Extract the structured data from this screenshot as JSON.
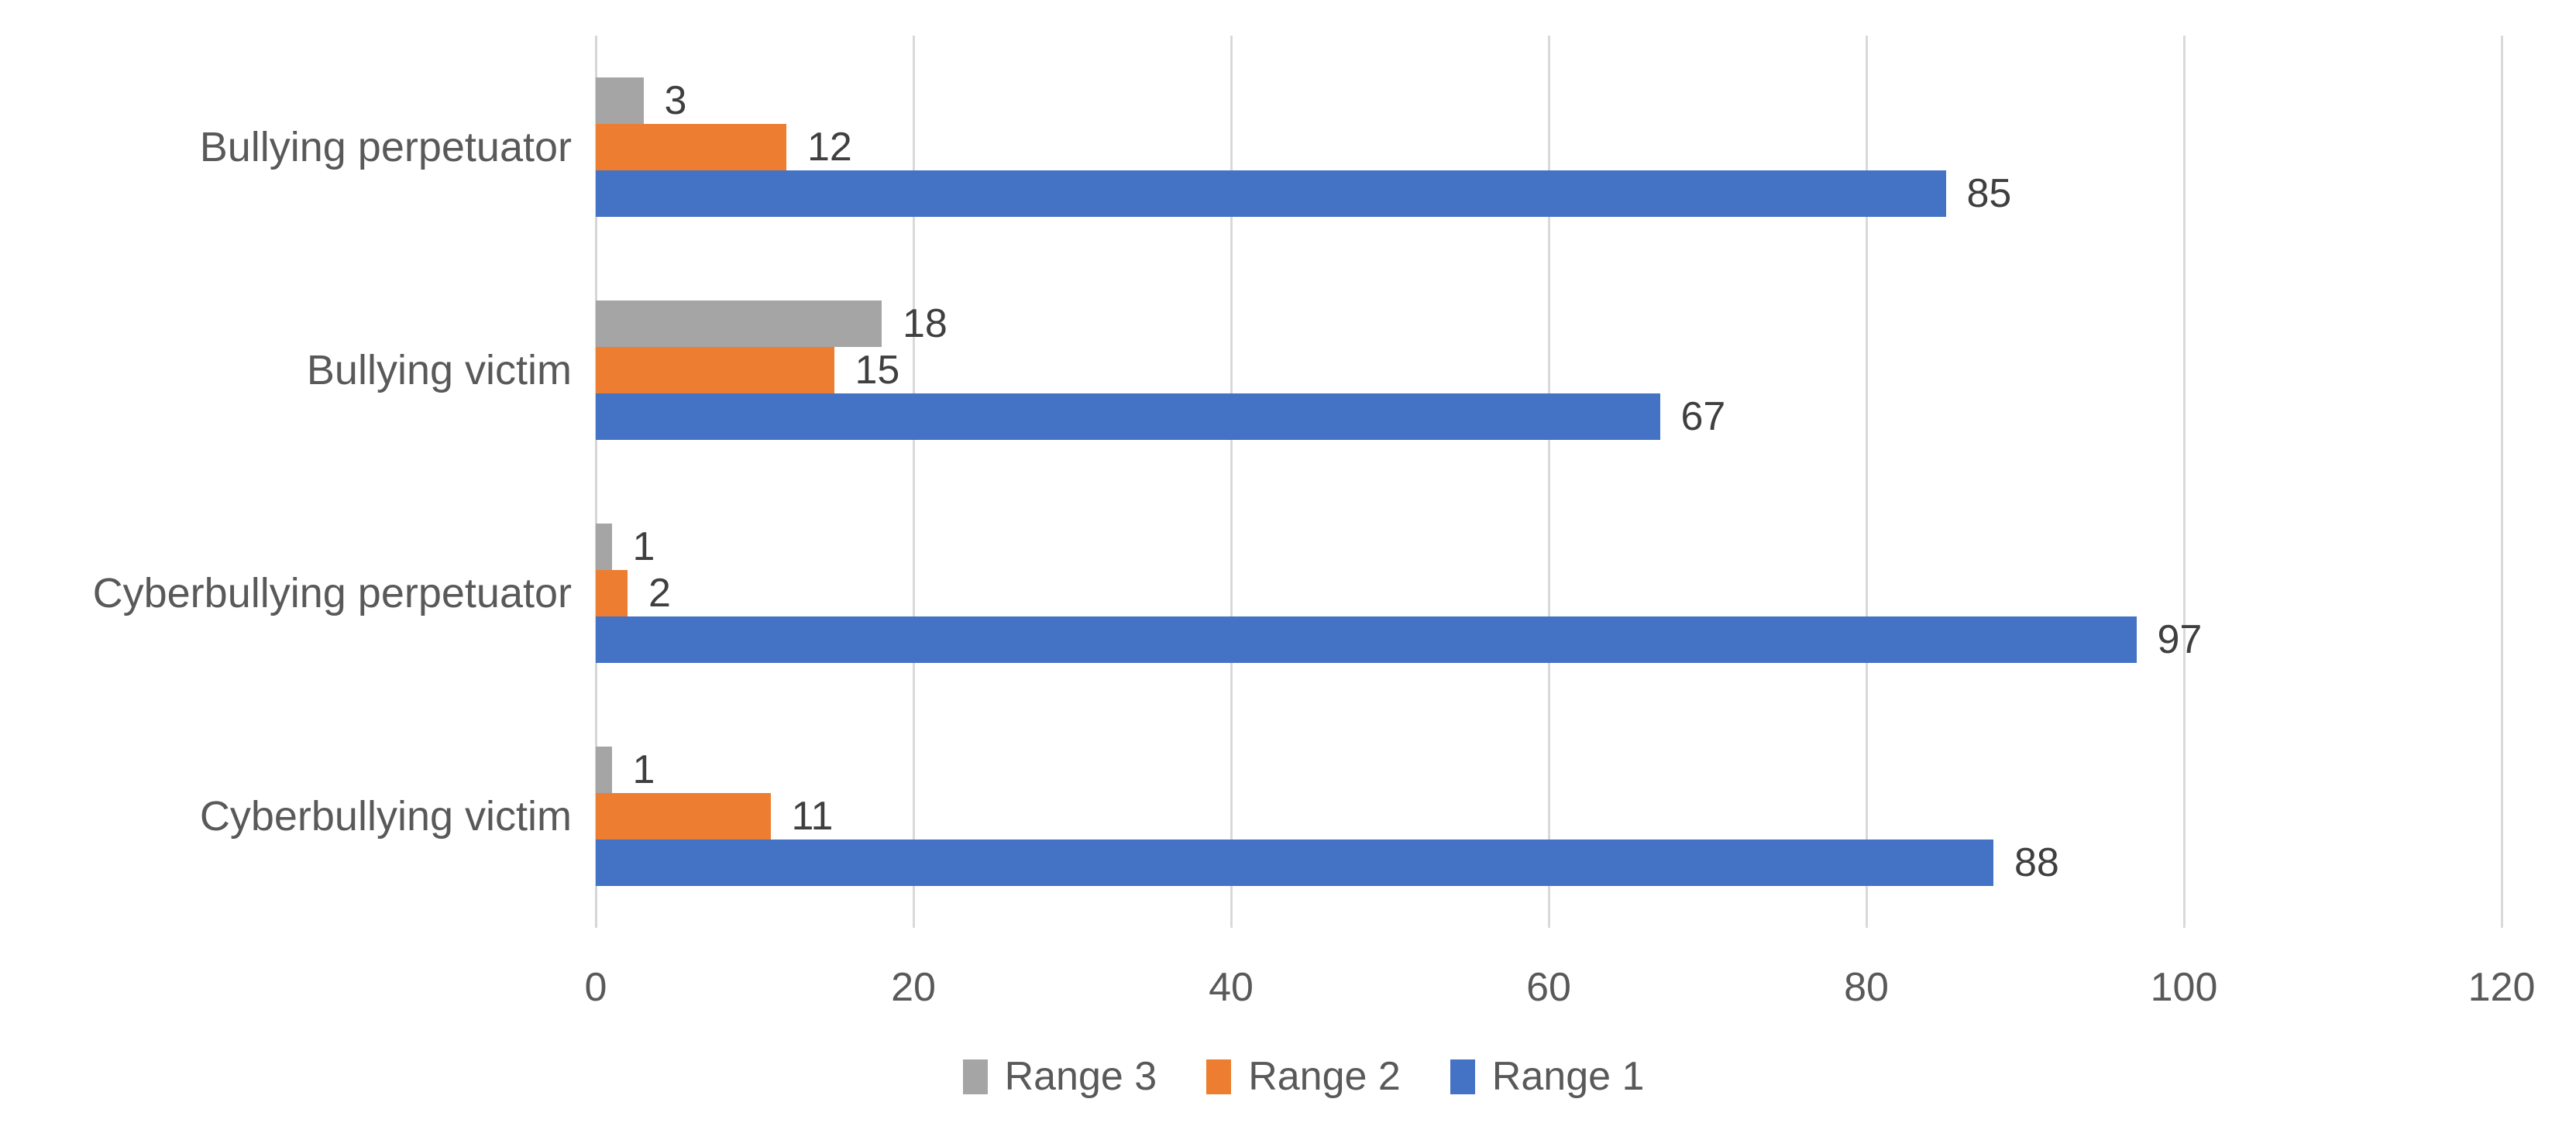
{
  "chart_data": {
    "type": "bar",
    "orientation": "horizontal",
    "title": "",
    "xlabel": "",
    "ylabel": "",
    "categories": [
      "Bullying perpetuator",
      "Bullying victim",
      "Cyberbullying perpetuator",
      "Cyberbullying victim"
    ],
    "series": [
      {
        "name": "Range 3",
        "color": "#A5A5A5",
        "values": [
          3,
          18,
          1,
          1
        ]
      },
      {
        "name": "Range 2",
        "color": "#ED7D31",
        "values": [
          12,
          15,
          2,
          11
        ]
      },
      {
        "name": "Range 1",
        "color": "#4472C4",
        "values": [
          85,
          67,
          97,
          88
        ]
      }
    ],
    "xlim": [
      0,
      120
    ],
    "xticks": [
      0,
      20,
      40,
      60,
      80,
      100,
      120
    ],
    "grid": true,
    "value_labels": true,
    "legend_position": "bottom",
    "legend_order": [
      "Range 3",
      "Range 2",
      "Range 1"
    ]
  },
  "styles": {
    "gridline_color": "#D9D9D9",
    "axis_line_color": "#D6D6D6",
    "tick_text_color": "#595959",
    "category_text_color": "#595959",
    "legend_text_color": "#595959",
    "value_text_color": "#3F3F3F",
    "background_color": "#FFFFFF"
  }
}
